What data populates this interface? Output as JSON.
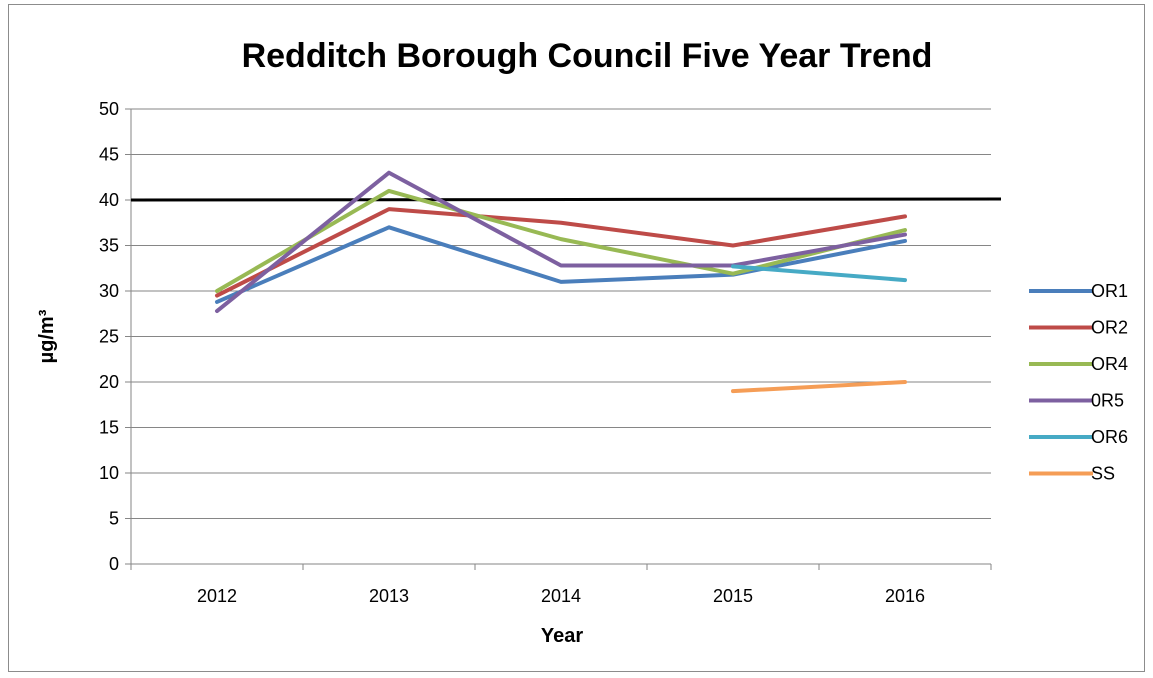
{
  "chart_data": {
    "type": "line",
    "title": "Redditch Borough Council Five Year Trend",
    "xlabel": "Year",
    "ylabel": "µg/m³",
    "categories": [
      "2012",
      "2013",
      "2014",
      "2015",
      "2016"
    ],
    "ylim": [
      0,
      50
    ],
    "yticks": [
      0,
      5,
      10,
      15,
      20,
      25,
      30,
      35,
      40,
      45,
      50
    ],
    "grid": true,
    "legend_position": "right",
    "reference_line": {
      "value": 40,
      "color": "#000000"
    },
    "series": [
      {
        "name": "OR1",
        "color": "#4a7ebb",
        "values": [
          28.8,
          37.0,
          31.0,
          31.8,
          35.5
        ]
      },
      {
        "name": "OR2",
        "color": "#be4b48",
        "values": [
          29.5,
          39.0,
          37.5,
          35.0,
          38.2
        ]
      },
      {
        "name": "OR4",
        "color": "#98b954",
        "values": [
          30.0,
          41.0,
          35.7,
          31.9,
          36.7
        ]
      },
      {
        "name": "0R5",
        "color": "#7d60a0",
        "values": [
          27.8,
          43.0,
          32.8,
          32.8,
          36.2
        ]
      },
      {
        "name": "OR6",
        "color": "#46aac5",
        "values": [
          null,
          null,
          null,
          32.7,
          31.2
        ]
      },
      {
        "name": "SS",
        "color": "#f59d56",
        "values": [
          null,
          null,
          null,
          19.0,
          20.0
        ]
      }
    ]
  }
}
